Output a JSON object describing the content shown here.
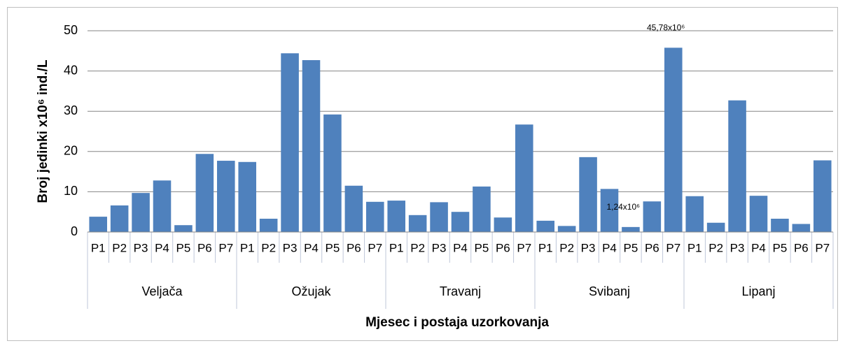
{
  "chart_data": {
    "type": "bar",
    "y_label": "Broj jedinki x10⁶ ind./L",
    "x_label": "Mjesec i postaja uzorkovanja",
    "categories": [
      "P1",
      "P2",
      "P3",
      "P4",
      "P5",
      "P6",
      "P7",
      "P1",
      "P2",
      "P3",
      "P4",
      "P5",
      "P6",
      "P7",
      "P1",
      "P2",
      "P3",
      "P4",
      "P5",
      "P6",
      "P7",
      "P1",
      "P2",
      "P3",
      "P4",
      "P5",
      "P6",
      "P7",
      "P1",
      "P2",
      "P3",
      "P4",
      "P5",
      "P6",
      "P7"
    ],
    "groups": [
      "Veljača",
      "Ožujak",
      "Travanj",
      "Svibanj",
      "Lipanj"
    ],
    "values": [
      3.8,
      6.6,
      9.7,
      12.8,
      1.7,
      19.4,
      17.7,
      17.4,
      3.3,
      44.4,
      42.7,
      29.2,
      11.5,
      7.5,
      7.8,
      4.2,
      7.4,
      5.0,
      11.3,
      3.6,
      26.7,
      2.8,
      1.5,
      18.6,
      10.7,
      1.24,
      7.6,
      45.78,
      8.9,
      2.3,
      32.7,
      9.0,
      3.3,
      2.0,
      17.8
    ],
    "value_labels": [
      null,
      null,
      null,
      null,
      null,
      null,
      null,
      null,
      null,
      null,
      null,
      null,
      null,
      null,
      null,
      null,
      null,
      null,
      null,
      null,
      null,
      null,
      null,
      null,
      null,
      "1,24x10⁶",
      null,
      "45,78x10⁶",
      null,
      null,
      null,
      null,
      null,
      null,
      null
    ],
    "color": "#4f81bd",
    "ylim": [
      0,
      50
    ],
    "yticks": [
      0,
      10,
      20,
      30,
      40,
      50
    ],
    "grid": true
  }
}
